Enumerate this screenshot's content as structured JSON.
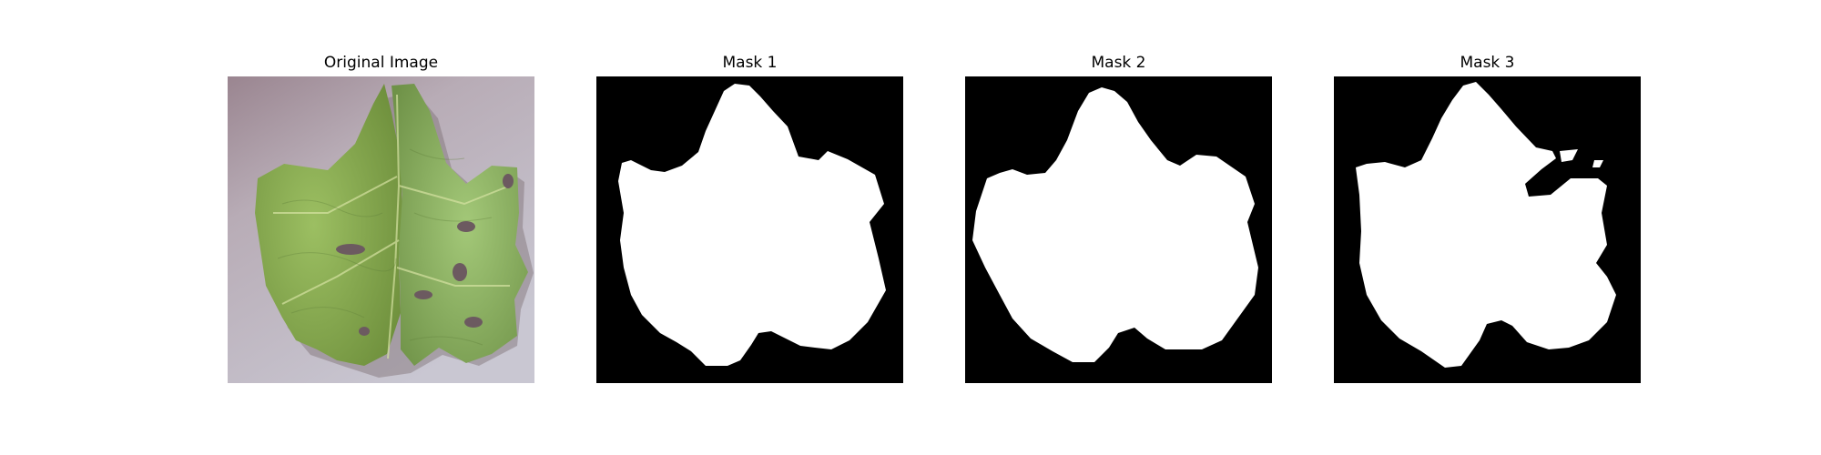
{
  "figure": {
    "panels": [
      {
        "title": "Original Image",
        "kind": "photo"
      },
      {
        "title": "Mask 1",
        "kind": "mask"
      },
      {
        "title": "Mask 2",
        "kind": "mask"
      },
      {
        "title": "Mask 3",
        "kind": "mask"
      }
    ]
  },
  "colors": {
    "background": "#ffffff",
    "mask_background": "#000000",
    "mask_foreground": "#ffffff",
    "leaf_green": "#8fb55c",
    "leaf_dark": "#5f7f3a",
    "backdrop": "#b9b0bc"
  }
}
